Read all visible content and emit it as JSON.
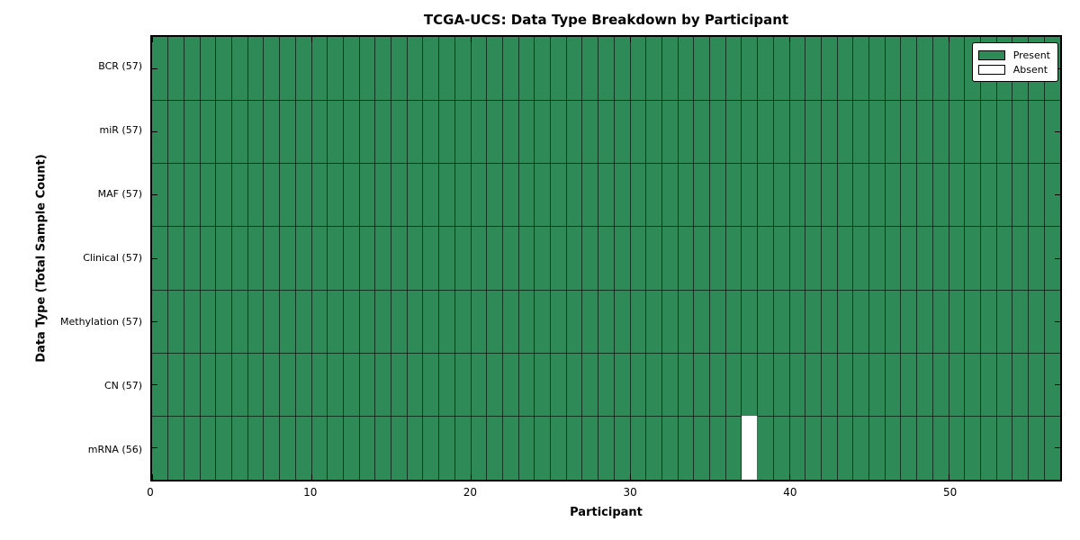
{
  "chart_data": {
    "type": "heatmap",
    "title": "TCGA-UCS: Data Type Breakdown by Participant",
    "xlabel": "Participant",
    "ylabel": "Data Type (Total Sample Count)",
    "n_participants": 57,
    "xlim": [
      0,
      57
    ],
    "x_ticks": [
      0,
      10,
      20,
      30,
      40,
      50
    ],
    "rows": [
      {
        "label": "BCR (57)",
        "data_type": "BCR",
        "present_count": 57,
        "absent_participants": []
      },
      {
        "label": "miR (57)",
        "data_type": "miR",
        "present_count": 57,
        "absent_participants": []
      },
      {
        "label": "MAF (57)",
        "data_type": "MAF",
        "present_count": 57,
        "absent_participants": []
      },
      {
        "label": "Clinical (57)",
        "data_type": "Clinical",
        "present_count": 57,
        "absent_participants": []
      },
      {
        "label": "Methylation (57)",
        "data_type": "Methylation",
        "present_count": 57,
        "absent_participants": []
      },
      {
        "label": "CN (57)",
        "data_type": "CN",
        "present_count": 57,
        "absent_participants": []
      },
      {
        "label": "mRNA (56)",
        "data_type": "mRNA",
        "present_count": 56,
        "absent_participants": [
          37
        ]
      }
    ],
    "legend": [
      {
        "label": "Present",
        "color": "#2e8b57"
      },
      {
        "label": "Absent",
        "color": "#ffffff"
      }
    ],
    "colors": {
      "present": "#2e8b57",
      "absent": "#ffffff",
      "cell_edge": "rgba(0,0,0,0.62)",
      "spine": "#000000",
      "background": "#ffffff"
    },
    "legend_position": "upper right",
    "grid": "cell-edges"
  }
}
